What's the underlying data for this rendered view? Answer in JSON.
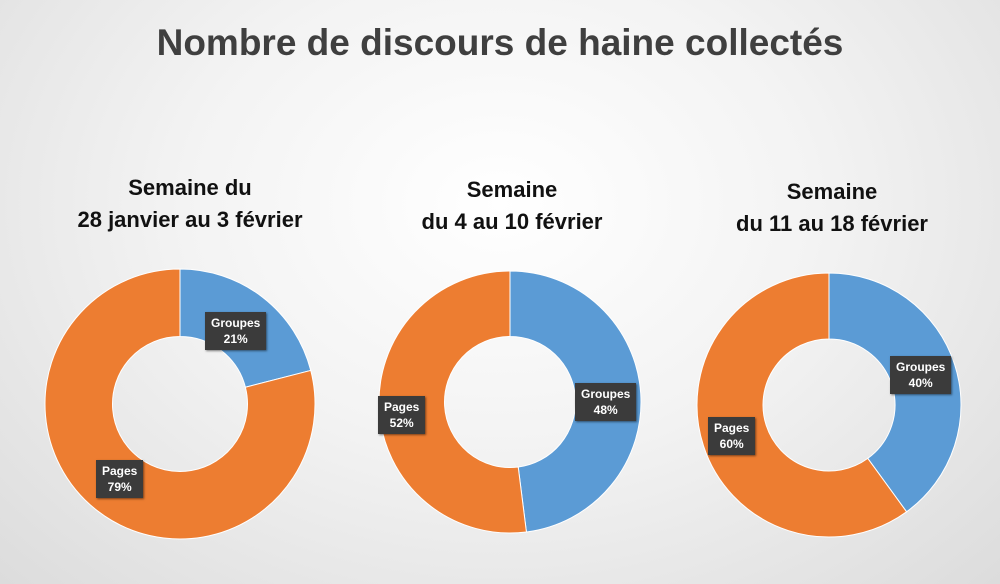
{
  "title": "Nombre de discours de haine collectés",
  "colors": {
    "groupes": "#5b9bd5",
    "pages": "#ed7d31"
  },
  "chart_data": [
    {
      "type": "pie",
      "title_line1": "Semaine du",
      "title_line2": "28 janvier au 3 février",
      "slices": [
        {
          "label": "Groupes",
          "value": 21,
          "value_label": "21%"
        },
        {
          "label": "Pages",
          "value": 79,
          "value_label": "79%"
        }
      ]
    },
    {
      "type": "pie",
      "title_line1": "Semaine",
      "title_line2": "du 4 au 10 février",
      "slices": [
        {
          "label": "Groupes",
          "value": 48,
          "value_label": "48%"
        },
        {
          "label": "Pages",
          "value": 52,
          "value_label": "52%"
        }
      ]
    },
    {
      "type": "pie",
      "title_line1": "Semaine",
      "title_line2": "du 11 au 18 février",
      "slices": [
        {
          "label": "Groupes",
          "value": 40,
          "value_label": "40%"
        },
        {
          "label": "Pages",
          "value": 60,
          "value_label": "60%"
        }
      ]
    }
  ]
}
